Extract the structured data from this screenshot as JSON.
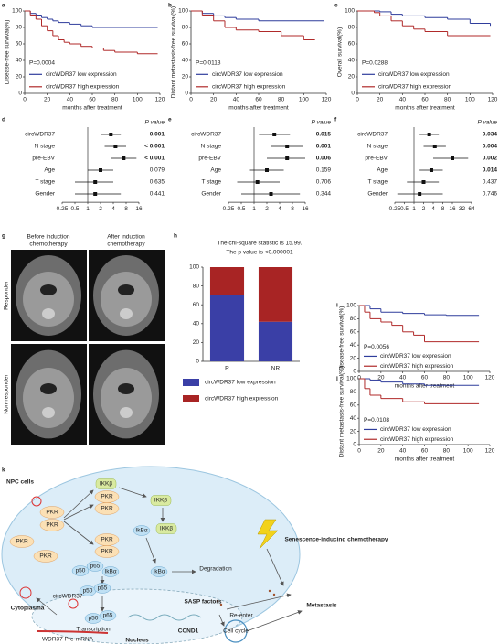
{
  "chart_data": [
    {
      "panel": "a",
      "type": "line",
      "step": true,
      "xlabel": "months after treatment",
      "ylabel": "Disease-free survival(%)",
      "annotation": "P=0.0004",
      "xlim": [
        0,
        120
      ],
      "ylim": [
        0,
        100
      ],
      "xticks": [
        0,
        20,
        40,
        60,
        80,
        100,
        120
      ],
      "yticks": [
        0,
        20,
        40,
        60,
        80,
        100
      ],
      "series": [
        {
          "name": "circWDR37 low expression",
          "color": "#2f3d9c",
          "x": [
            0,
            5,
            10,
            15,
            20,
            25,
            30,
            40,
            50,
            60,
            118
          ],
          "values": [
            100,
            97,
            95,
            92,
            90,
            88,
            86,
            84,
            82,
            80,
            80
          ]
        },
        {
          "name": "circWDR37 high expression",
          "color": "#b02a2a",
          "x": [
            0,
            5,
            10,
            15,
            20,
            25,
            30,
            35,
            40,
            50,
            60,
            70,
            80,
            100,
            118
          ],
          "values": [
            100,
            95,
            90,
            82,
            76,
            70,
            65,
            62,
            60,
            57,
            55,
            52,
            50,
            48,
            48
          ]
        }
      ]
    },
    {
      "panel": "b",
      "type": "line",
      "step": true,
      "xlabel": "months after treatment",
      "ylabel": "Distant metastasis-free survival(%)",
      "annotation": "P=0.0113",
      "xlim": [
        0,
        120
      ],
      "ylim": [
        0,
        100
      ],
      "xticks": [
        0,
        20,
        40,
        60,
        80,
        100,
        120
      ],
      "yticks": [
        0,
        20,
        40,
        60,
        80,
        100
      ],
      "series": [
        {
          "name": "circWDR37 low expression",
          "color": "#2f3d9c",
          "x": [
            0,
            10,
            20,
            30,
            40,
            60,
            118
          ],
          "values": [
            100,
            97,
            94,
            92,
            90,
            88,
            88
          ]
        },
        {
          "name": "circWDR37 high expression",
          "color": "#b02a2a",
          "x": [
            0,
            10,
            20,
            30,
            40,
            60,
            80,
            100,
            110
          ],
          "values": [
            100,
            95,
            88,
            80,
            77,
            75,
            70,
            65,
            65
          ]
        }
      ]
    },
    {
      "panel": "c",
      "type": "line",
      "step": true,
      "xlabel": "months after treatment",
      "ylabel": "Overall survival(%)",
      "annotation": "P=0.0288",
      "xlim": [
        0,
        120
      ],
      "ylim": [
        0,
        100
      ],
      "xticks": [
        0,
        20,
        40,
        60,
        80,
        100,
        120
      ],
      "yticks": [
        0,
        20,
        40,
        60,
        80,
        100
      ],
      "series": [
        {
          "name": "circWDR37 low expression",
          "color": "#2f3d9c",
          "x": [
            0,
            20,
            30,
            40,
            60,
            80,
            100,
            118
          ],
          "values": [
            100,
            99,
            96,
            94,
            92,
            90,
            85,
            82
          ]
        },
        {
          "name": "circWDR37 high expression",
          "color": "#b02a2a",
          "x": [
            0,
            15,
            20,
            30,
            40,
            50,
            60,
            80,
            118
          ],
          "values": [
            100,
            98,
            94,
            88,
            82,
            78,
            75,
            70,
            70
          ]
        }
      ]
    },
    {
      "panel": "d",
      "type": "forest",
      "log_scale": true,
      "p_header": "P value",
      "reference": 1,
      "color": "#111",
      "categories": [
        "circWDR37",
        "N stage",
        "pre-EBV",
        "Age",
        "T stage",
        "Gender"
      ],
      "values": [
        3.5,
        4.5,
        7,
        2,
        1.5,
        1.5
      ],
      "ci_low": [
        2,
        2.5,
        3.5,
        1,
        0.5,
        0.5
      ],
      "ci_high": [
        6,
        8,
        14,
        4,
        4,
        6
      ],
      "p_values": [
        "0.001",
        "< 0.001",
        "< 0.001",
        "0.079",
        "0.635",
        "0.441"
      ],
      "p_bold": [
        true,
        true,
        true,
        false,
        false,
        false
      ],
      "xlim": [
        0.25,
        16
      ],
      "xticks": [
        0.25,
        0.5,
        1,
        2,
        4,
        8,
        16
      ]
    },
    {
      "panel": "e",
      "type": "forest",
      "log_scale": true,
      "p_header": "P value",
      "reference": 1,
      "color": "#111",
      "categories": [
        "circWDR37",
        "N stage",
        "pre-EBV",
        "Age",
        "T stage",
        "Gender"
      ],
      "values": [
        3,
        6,
        6,
        2,
        1.2,
        2.5
      ],
      "ci_low": [
        1.3,
        2.5,
        2,
        0.8,
        0.4,
        0.5
      ],
      "ci_high": [
        7,
        14,
        16,
        5,
        4,
        12
      ],
      "p_values": [
        "0.015",
        "0.001",
        "0.006",
        "0.159",
        "0.706",
        "0.344"
      ],
      "p_bold": [
        true,
        true,
        true,
        false,
        false,
        false
      ],
      "xlim": [
        0.25,
        16
      ],
      "xticks": [
        0.25,
        0.5,
        1,
        2,
        4,
        8,
        16
      ]
    },
    {
      "panel": "f",
      "type": "forest",
      "log_scale": true,
      "p_header": "P value",
      "reference": 1,
      "color": "#111",
      "categories": [
        "circWDR37",
        "N stage",
        "pre-EBV",
        "Age",
        "T stage",
        "Gender"
      ],
      "values": [
        3,
        4.5,
        16,
        3.5,
        2,
        1.5
      ],
      "ci_low": [
        1.5,
        2,
        4,
        1.5,
        0.6,
        0.3
      ],
      "ci_high": [
        6,
        10,
        50,
        8,
        6,
        8
      ],
      "p_values": [
        "0.034",
        "0.004",
        "0.002",
        "0.014",
        "0.437",
        "0.746"
      ],
      "p_bold": [
        true,
        true,
        true,
        true,
        false,
        false
      ],
      "xlim": [
        0.25,
        64
      ],
      "xticks": [
        0.25,
        0.5,
        1,
        2,
        4,
        8,
        16,
        32,
        64
      ]
    },
    {
      "panel": "h",
      "type": "bar",
      "stacked": true,
      "title": [
        "The chi-square statistic is 15.99.",
        "The p value is <0.000001"
      ],
      "categories": [
        "R",
        "NR"
      ],
      "ylim": [
        0,
        100
      ],
      "yticks": [
        0,
        20,
        40,
        60,
        80,
        100
      ],
      "series": [
        {
          "name": "circWDR37 low expression",
          "color": "#3a3fa6",
          "values": [
            70,
            42
          ]
        },
        {
          "name": "circWDR37 high expression",
          "color": "#a82424",
          "values": [
            30,
            58
          ]
        }
      ]
    },
    {
      "panel": "i",
      "type": "line",
      "step": true,
      "xlabel": "months after treatment",
      "ylabel": "Disease-free survival(%)",
      "annotation": "P=0.0056",
      "xlim": [
        0,
        120
      ],
      "ylim": [
        0,
        100
      ],
      "xticks": [
        0,
        20,
        40,
        60,
        80,
        100,
        120
      ],
      "yticks": [
        0,
        20,
        40,
        60,
        80,
        100
      ],
      "series": [
        {
          "name": "circWDR37 low expression",
          "color": "#2f3d9c",
          "x": [
            0,
            10,
            20,
            40,
            60,
            80,
            110
          ],
          "values": [
            100,
            95,
            90,
            88,
            86,
            85,
            85
          ]
        },
        {
          "name": "circWDR37 high expression",
          "color": "#b02a2a",
          "x": [
            0,
            5,
            10,
            20,
            30,
            40,
            50,
            60,
            110
          ],
          "values": [
            100,
            90,
            80,
            75,
            70,
            60,
            55,
            45,
            45
          ]
        }
      ]
    },
    {
      "panel": "j",
      "type": "line",
      "step": true,
      "xlabel": "months after treatment",
      "ylabel": "Distant metastasis-free survival(%)",
      "annotation": "P=0.0108",
      "xlim": [
        0,
        120
      ],
      "ylim": [
        0,
        100
      ],
      "xticks": [
        0,
        20,
        40,
        60,
        80,
        100,
        120
      ],
      "yticks": [
        0,
        20,
        40,
        60,
        80,
        100
      ],
      "series": [
        {
          "name": "circWDR37 low expression",
          "color": "#2f3d9c",
          "x": [
            0,
            10,
            20,
            40,
            60,
            110
          ],
          "values": [
            100,
            98,
            95,
            92,
            90,
            90
          ]
        },
        {
          "name": "circWDR37 high expression",
          "color": "#b02a2a",
          "x": [
            0,
            5,
            10,
            20,
            40,
            60,
            110
          ],
          "values": [
            100,
            85,
            75,
            70,
            65,
            62,
            62
          ]
        }
      ]
    }
  ],
  "images": {
    "panel": "g",
    "col_headers": [
      [
        "Before induction",
        "chemotherapy"
      ],
      [
        "After induction",
        "chemotherapy"
      ]
    ],
    "row_labels": [
      "Responder",
      "Non-responder"
    ]
  },
  "diagram": {
    "panel": "k",
    "labels": [
      "NPC cells",
      "PKR",
      "PKR",
      "PKR",
      "PKR",
      "IKKβ",
      "PKR",
      "PKR",
      "IKKβ",
      "IKKβ",
      "IkBα",
      "PKR",
      "PKR",
      "p50",
      "p65",
      "IkBα",
      "IkBα",
      "Degradation",
      "p50",
      "p65",
      "p50",
      "p65",
      "SASP factors",
      "Senescence-inducing chemotherapy",
      "Re-enter",
      "Cell cycle",
      "CCND1",
      "Metastasis",
      "Cytoplasma",
      "circWDR37",
      "Transcription",
      "WDR37 Pre-mRNA",
      "Nucleus"
    ]
  }
}
